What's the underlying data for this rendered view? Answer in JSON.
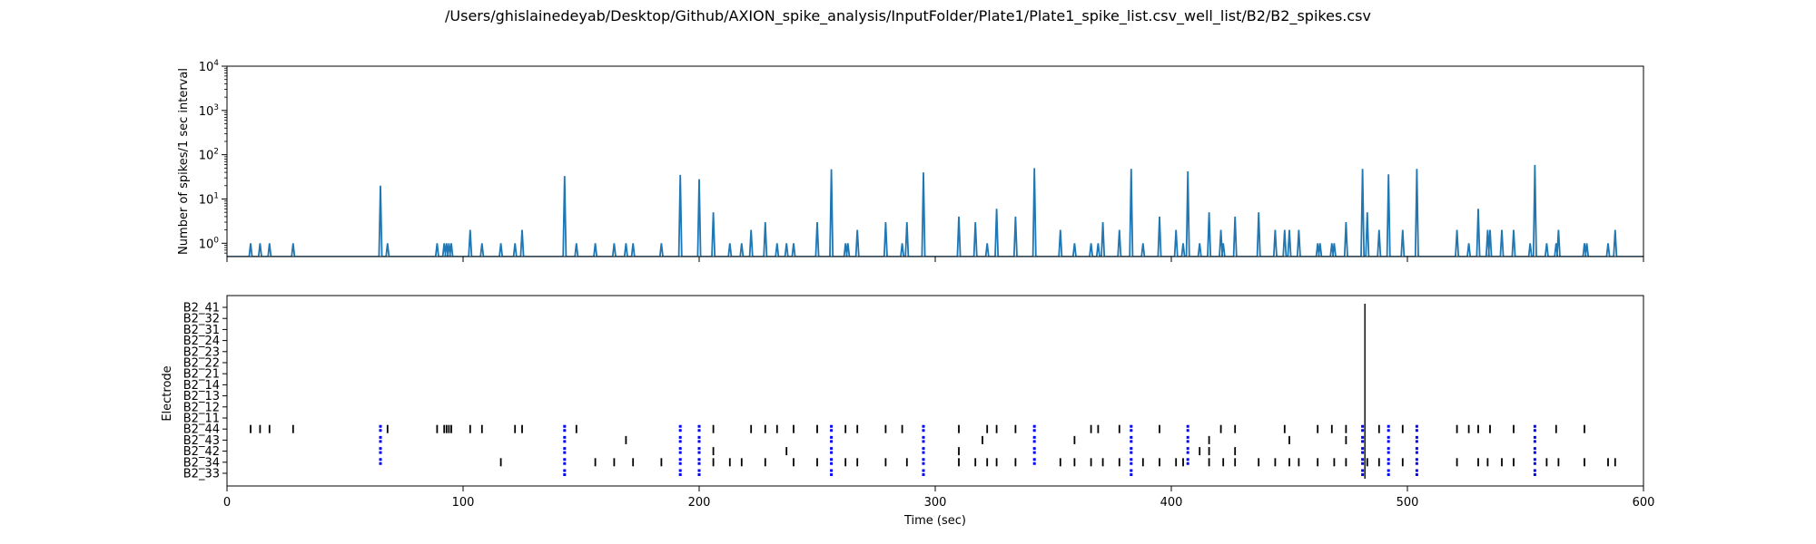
{
  "figure": {
    "title": "/Users/ghislainedeyab/Desktop/Github/AXION_spike_analysis/InputFolder/Plate1/Plate1_spike_list.csv_well_list/B2/B2_spikes.csv"
  },
  "chart_data": [
    {
      "type": "line",
      "title": "",
      "xlabel": "",
      "ylabel": "Number of spikes/1 sec interval",
      "yscale": "log",
      "xlim": [
        0,
        600
      ],
      "ylim": [
        0.5,
        10000
      ],
      "xticks": [
        0,
        100,
        200,
        300,
        400,
        500,
        600
      ],
      "xtick_labels_visible": false,
      "yticks": [
        1,
        10,
        100,
        1000,
        10000
      ],
      "ytick_labels": [
        "10^0",
        "10^1",
        "10^2",
        "10^3",
        "10^4"
      ],
      "grid": false,
      "color": "#1f77b4",
      "series": [
        {
          "points": [
            [
              10,
              1
            ],
            [
              14,
              1
            ],
            [
              18,
              1
            ],
            [
              28,
              1
            ],
            [
              65,
              20
            ],
            [
              68,
              1
            ],
            [
              89,
              1
            ],
            [
              92,
              1
            ],
            [
              93,
              1
            ],
            [
              94,
              1
            ],
            [
              95,
              1
            ],
            [
              103,
              2
            ],
            [
              108,
              1
            ],
            [
              116,
              1
            ],
            [
              122,
              1
            ],
            [
              125,
              2
            ],
            [
              143,
              33
            ],
            [
              148,
              1
            ],
            [
              156,
              1
            ],
            [
              164,
              1
            ],
            [
              169,
              1
            ],
            [
              172,
              1
            ],
            [
              184,
              1
            ],
            [
              192,
              35
            ],
            [
              200,
              28
            ],
            [
              206,
              5
            ],
            [
              213,
              1
            ],
            [
              218,
              1
            ],
            [
              222,
              2
            ],
            [
              228,
              3
            ],
            [
              233,
              1
            ],
            [
              237,
              1
            ],
            [
              240,
              1
            ],
            [
              250,
              3
            ],
            [
              256,
              47
            ],
            [
              262,
              1
            ],
            [
              263,
              1
            ],
            [
              267,
              2
            ],
            [
              279,
              3
            ],
            [
              286,
              1
            ],
            [
              288,
              3
            ],
            [
              295,
              40
            ],
            [
              310,
              4
            ],
            [
              317,
              3
            ],
            [
              322,
              1
            ],
            [
              326,
              6
            ],
            [
              334,
              4
            ],
            [
              342,
              50
            ],
            [
              353,
              2
            ],
            [
              359,
              1
            ],
            [
              366,
              1
            ],
            [
              369,
              1
            ],
            [
              371,
              3
            ],
            [
              378,
              2
            ],
            [
              383,
              48
            ],
            [
              388,
              1
            ],
            [
              395,
              4
            ],
            [
              402,
              2
            ],
            [
              405,
              1
            ],
            [
              407,
              42
            ],
            [
              412,
              1
            ],
            [
              416,
              5
            ],
            [
              421,
              2
            ],
            [
              422,
              1
            ],
            [
              427,
              4
            ],
            [
              437,
              5
            ],
            [
              444,
              2
            ],
            [
              448,
              2
            ],
            [
              450,
              2
            ],
            [
              454,
              2
            ],
            [
              462,
              1
            ],
            [
              463,
              1
            ],
            [
              468,
              1
            ],
            [
              469,
              1
            ],
            [
              474,
              3
            ],
            [
              481,
              48
            ],
            [
              483,
              5
            ],
            [
              488,
              2
            ],
            [
              492,
              36
            ],
            [
              498,
              2
            ],
            [
              504,
              48
            ],
            [
              521,
              2
            ],
            [
              526,
              1
            ],
            [
              530,
              6
            ],
            [
              534,
              2
            ],
            [
              535,
              2
            ],
            [
              540,
              2
            ],
            [
              545,
              2
            ],
            [
              552,
              1
            ],
            [
              554,
              59
            ],
            [
              559,
              1
            ],
            [
              563,
              1
            ],
            [
              564,
              2
            ],
            [
              575,
              1
            ],
            [
              576,
              1
            ],
            [
              585,
              1
            ],
            [
              588,
              2
            ]
          ]
        }
      ]
    },
    {
      "type": "scatter",
      "subtype": "raster",
      "title": "",
      "xlabel": "Time (sec)",
      "ylabel": "Electrode",
      "xlim": [
        0,
        600
      ],
      "xticks": [
        0,
        100,
        200,
        300,
        400,
        500,
        600
      ],
      "xtick_labels": [
        "0",
        "100",
        "200",
        "300",
        "400",
        "500",
        "600"
      ],
      "categories": [
        "B2_33",
        "B2_34",
        "B2_42",
        "B2_43",
        "B2_44",
        "B2_11",
        "B2_12",
        "B2_13",
        "B2_14",
        "B2_21",
        "B2_22",
        "B2_23",
        "B2_24",
        "B2_31",
        "B2_32",
        "B2_41"
      ],
      "grid": false,
      "spike_color": "#000000",
      "burst_color": "#0000ff",
      "bursts_x": [
        65,
        143,
        192,
        200,
        256,
        295,
        342,
        383,
        407,
        481,
        492,
        504,
        554
      ],
      "vertical_line_x": 482,
      "electrodes": [
        {
          "name": "B2_44",
          "spikes": [
            10,
            14,
            18,
            28,
            65,
            68,
            89,
            92,
            93,
            94,
            95,
            103,
            108,
            122,
            125,
            143,
            148,
            192,
            200,
            206,
            222,
            228,
            233,
            240,
            250,
            256,
            262,
            267,
            279,
            286,
            295,
            310,
            322,
            326,
            334,
            342,
            366,
            369,
            378,
            383,
            395,
            407,
            421,
            427,
            448,
            462,
            468,
            474,
            481,
            488,
            492,
            498,
            504,
            521,
            526,
            530,
            535,
            545,
            554,
            563,
            575
          ]
        },
        {
          "name": "B2_43",
          "spikes": [
            65,
            143,
            169,
            192,
            200,
            256,
            295,
            320,
            342,
            359,
            383,
            407,
            416,
            450,
            474,
            481,
            492,
            504,
            554
          ]
        },
        {
          "name": "B2_42",
          "spikes": [
            65,
            143,
            192,
            200,
            206,
            237,
            256,
            295,
            310,
            342,
            383,
            407,
            412,
            416,
            427,
            481,
            492,
            504,
            554
          ]
        },
        {
          "name": "B2_34",
          "spikes": [
            65,
            116,
            143,
            156,
            164,
            172,
            184,
            192,
            200,
            206,
            213,
            218,
            228,
            240,
            250,
            256,
            262,
            267,
            279,
            288,
            295,
            310,
            317,
            322,
            326,
            334,
            342,
            353,
            359,
            366,
            371,
            378,
            383,
            388,
            395,
            402,
            405,
            407,
            416,
            422,
            427,
            437,
            444,
            450,
            454,
            462,
            469,
            474,
            481,
            483,
            488,
            492,
            498,
            504,
            521,
            530,
            534,
            540,
            545,
            554,
            559,
            564,
            575,
            585,
            588
          ]
        },
        {
          "name": "B2_33",
          "spikes": [
            143,
            192,
            200,
            256,
            295,
            383,
            481,
            492,
            504,
            554
          ]
        }
      ]
    }
  ]
}
